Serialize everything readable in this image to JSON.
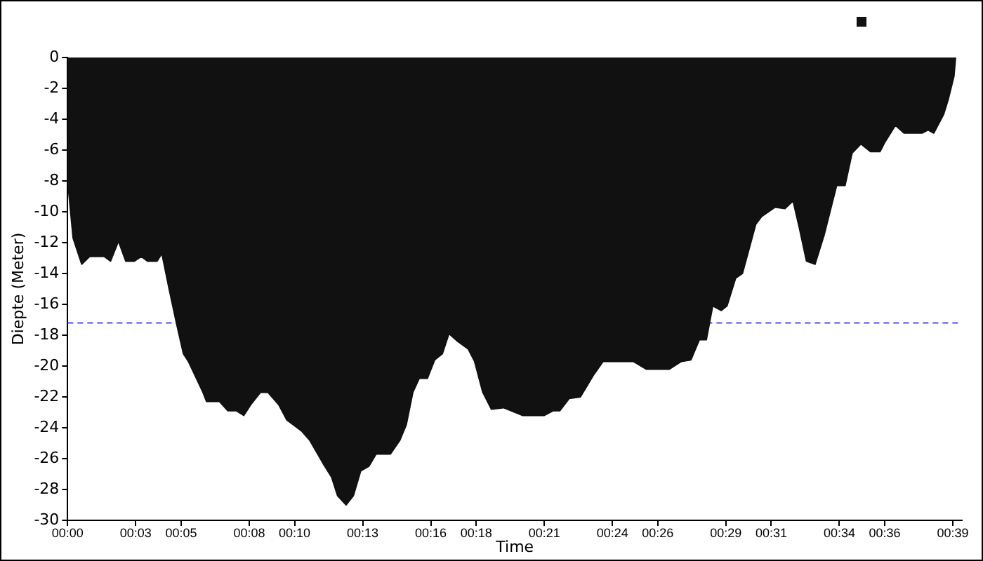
{
  "chart_data": {
    "type": "area",
    "xlabel": "Time",
    "ylabel": "Diepte (Meter)",
    "x": [
      0,
      0.02,
      0.24,
      0.62,
      0.97,
      1.61,
      1.89,
      2.24,
      2.56,
      2.94,
      3.24,
      3.52,
      3.94,
      4.15,
      4.47,
      4.79,
      5.1,
      5.32,
      5.96,
      6.12,
      6.69,
      7.06,
      7.44,
      7.76,
      8.07,
      8.5,
      8.82,
      9.3,
      9.66,
      10.3,
      10.66,
      11.25,
      11.63,
      11.89,
      12.27,
      12.59,
      12.91,
      13.27,
      13.59,
      14.22,
      14.64,
      14.92,
      15.21,
      15.49,
      15.85,
      16.17,
      16.51,
      16.8,
      17.18,
      17.65,
      17.93,
      18.29,
      18.67,
      19.2,
      20.04,
      21.0,
      21.38,
      21.68,
      22.1,
      22.59,
      23.16,
      23.59,
      24.92,
      25.49,
      26.51,
      27.04,
      27.46,
      27.83,
      28.14,
      28.42,
      28.8,
      29.05,
      29.43,
      29.73,
      30.32,
      30.58,
      31.17,
      31.6,
      31.96,
      32.23,
      32.55,
      32.93,
      33.33,
      33.88,
      34.25,
      34.56,
      34.95,
      35.37,
      35.79,
      36.0,
      36.47,
      36.85,
      37.64,
      37.91,
      38.16,
      38.59,
      38.8,
      39.05,
      39.12
    ],
    "series": [
      {
        "color": "#111111",
        "values": [
          0,
          -8.3,
          -11.7,
          -13.4,
          -12.9,
          -12.9,
          -13.2,
          -11.9,
          -13.2,
          -13.2,
          -12.9,
          -13.2,
          -13.2,
          -12.7,
          -15,
          -17.2,
          -19.2,
          -19.7,
          -21.7,
          -22.3,
          -22.3,
          -22.9,
          -22.9,
          -23.2,
          -22.5,
          -21.7,
          -21.7,
          -22.5,
          -23.5,
          -24.2,
          -24.8,
          -26.3,
          -27.2,
          -28.4,
          -29,
          -28.4,
          -26.8,
          -26.5,
          -25.7,
          -25.7,
          -24.8,
          -23.8,
          -21.7,
          -20.8,
          -20.8,
          -19.6,
          -19.2,
          -17.9,
          -18.4,
          -18.9,
          -19.7,
          -21.7,
          -22.8,
          -22.7,
          -23.2,
          -23.2,
          -22.9,
          -22.9,
          -22.1,
          -22,
          -20.6,
          -19.7,
          -19.7,
          -20.2,
          -20.2,
          -19.7,
          -19.6,
          -18.3,
          -18.3,
          -16.1,
          -16.4,
          -16.1,
          -14.3,
          -14,
          -10.8,
          -10.3,
          -9.7,
          -9.8,
          -9.3,
          -11,
          -13.2,
          -13.4,
          -11.5,
          -8.3,
          -8.3,
          -6.2,
          -5.6,
          -6.1,
          -6.1,
          -5.5,
          -4.4,
          -4.9,
          -4.9,
          -4.7,
          -4.9,
          -3.7,
          -2.7,
          -1.2,
          0
        ]
      }
    ],
    "xlim": [
      0,
      39.4
    ],
    "xticks": [
      {
        "value": 0,
        "label": "00:00"
      },
      {
        "value": 3,
        "label": "00:03"
      },
      {
        "value": 5,
        "label": "00:05"
      },
      {
        "value": 8,
        "label": "00:08"
      },
      {
        "value": 10,
        "label": "00:10"
      },
      {
        "value": 13,
        "label": "00:13"
      },
      {
        "value": 16,
        "label": "00:16"
      },
      {
        "value": 18,
        "label": "00:18"
      },
      {
        "value": 21,
        "label": "00:21"
      },
      {
        "value": 24,
        "label": "00:24"
      },
      {
        "value": 26,
        "label": "00:26"
      },
      {
        "value": 29,
        "label": "00:29"
      },
      {
        "value": 31,
        "label": "00:31"
      },
      {
        "value": 34,
        "label": "00:34"
      },
      {
        "value": 36,
        "label": "00:36"
      },
      {
        "value": 39,
        "label": "00:39"
      }
    ],
    "ylim": [
      -30,
      0
    ],
    "yticks": [
      0,
      -2,
      -4,
      -6,
      -8,
      -10,
      -12,
      -14,
      -16,
      -18,
      -20,
      -22,
      -24,
      -26,
      -28,
      -30
    ],
    "ref_lines": [
      {
        "axis": "y",
        "value": -17.2,
        "color": "#4a4aff",
        "line_style": "dashed"
      }
    ]
  }
}
